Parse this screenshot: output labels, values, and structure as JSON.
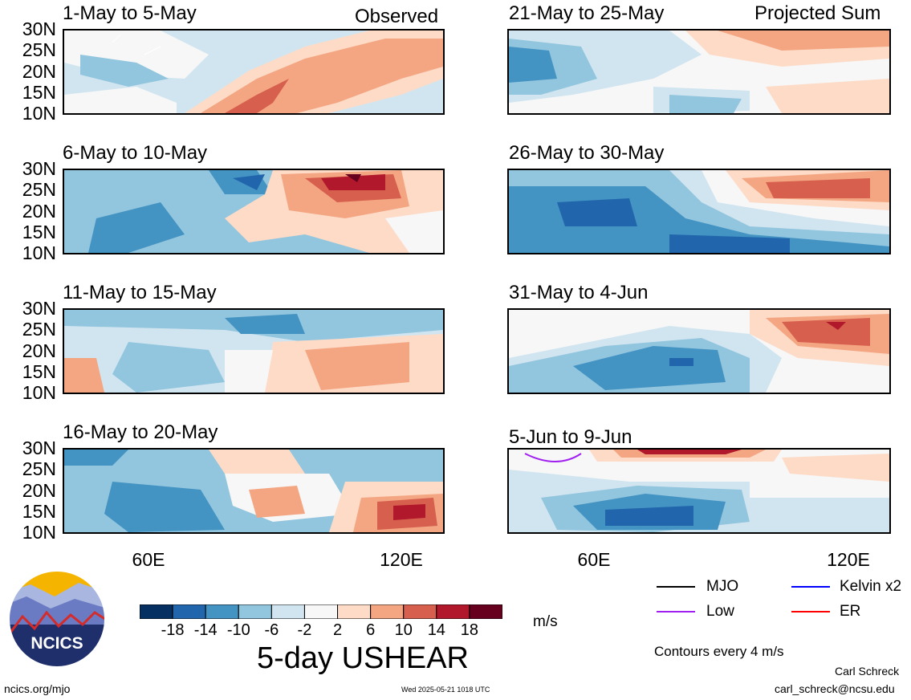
{
  "panels": [
    {
      "title": "1-May to 5-May",
      "label": "Observed"
    },
    {
      "title": "6-May to 10-May",
      "label": ""
    },
    {
      "title": "11-May to 15-May",
      "label": ""
    },
    {
      "title": "16-May to 20-May",
      "label": ""
    },
    {
      "title": "21-May to 25-May",
      "label": "Projected Sum"
    },
    {
      "title": "26-May to 30-May",
      "label": ""
    },
    {
      "title": "31-May to 4-Jun",
      "label": ""
    },
    {
      "title": "5-Jun to 9-Jun",
      "label": ""
    }
  ],
  "y_ticks": [
    "30N",
    "25N",
    "20N",
    "15N",
    "10N"
  ],
  "x_ticks": [
    "60E",
    "120E"
  ],
  "colorbar": {
    "labels": [
      "-18",
      "-14",
      "-10",
      "-6",
      "-2",
      "2",
      "6",
      "10",
      "14",
      "18"
    ],
    "colors": [
      "#053061",
      "#2166ac",
      "#4393c3",
      "#92c5de",
      "#d1e5f0",
      "#f7f7f7",
      "#fddbc7",
      "#f4a582",
      "#d6604d",
      "#b2182b",
      "#67001f"
    ],
    "unit": "m/s",
    "title": "5-day USHEAR"
  },
  "legend": {
    "items": [
      {
        "label": "MJO",
        "color": "#000000"
      },
      {
        "label": "Kelvin x2",
        "color": "#0000ff"
      },
      {
        "label": "Low",
        "color": "#a020f0"
      },
      {
        "label": "ER",
        "color": "#ff0000"
      }
    ],
    "contours": "Contours every 4 m/s"
  },
  "logo_text": "NCICS",
  "footer": {
    "left": "ncics.org/mjo",
    "center": "Wed 2025-05-21 1018 UTC",
    "author": "Carl Schreck",
    "email": "carl_schreck@ncsu.edu"
  }
}
